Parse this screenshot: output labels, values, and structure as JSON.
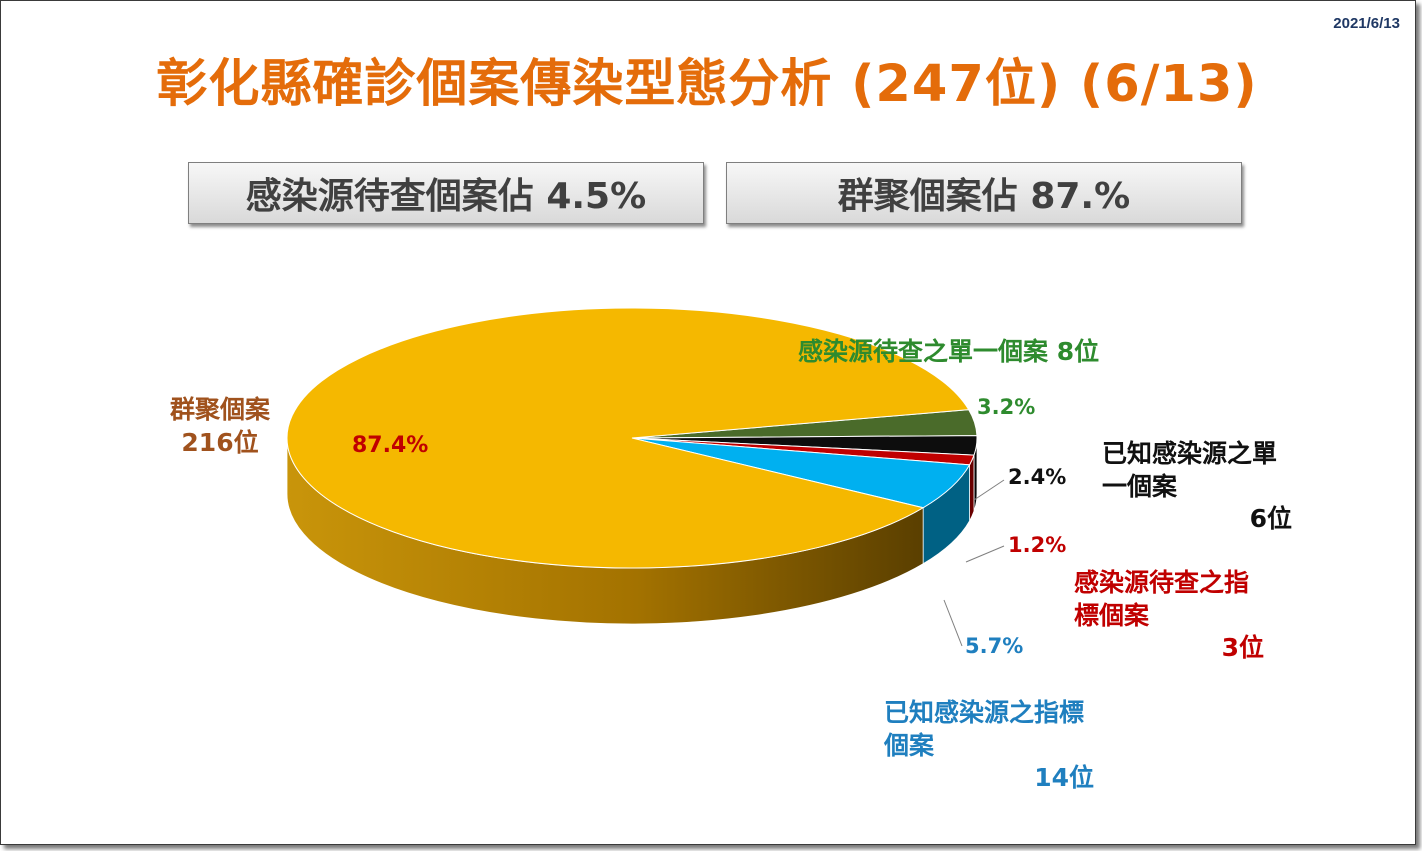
{
  "date": "2021/6/13",
  "title": "彰化縣確診個案傳染型態分析 (247位) (6/13)",
  "stats": {
    "unknown_source": "感染源待查個案佔 4.5%",
    "cluster": "群聚個案佔 87.%"
  },
  "colors": {
    "title": "#e46c0a",
    "cluster": "#f5b800",
    "unknown_single": "#4a6b2a",
    "known_single": "#0d0d0d",
    "unknown_index": "#c00000",
    "known_index": "#00b0f0"
  },
  "chart_data": {
    "type": "pie",
    "style": "3d",
    "total": 247,
    "slices": [
      {
        "label": "群聚個案",
        "count_label": "216位",
        "count": 216,
        "percent": 87.4,
        "percent_label": "87.4%",
        "color": "#f5b800",
        "label_color": "#a0521d",
        "pct_color": "#c00000"
      },
      {
        "label": "感染源待查之單一個案",
        "count_label": "8位",
        "count": 8,
        "percent": 3.2,
        "percent_label": "3.2%",
        "color": "#4a6b2a",
        "label_color": "#2e8b2e",
        "pct_color": "#2e8b2e"
      },
      {
        "label": "已知感染源之單一個案",
        "count_label": "6位",
        "count": 6,
        "percent": 2.4,
        "percent_label": "2.4%",
        "color": "#0d0d0d",
        "label_color": "#111111",
        "pct_color": "#111111"
      },
      {
        "label": "感染源待查之指標個案",
        "count_label": "3位",
        "count": 3,
        "percent": 1.2,
        "percent_label": "1.2%",
        "color": "#c00000",
        "label_color": "#c00000",
        "pct_color": "#c00000"
      },
      {
        "label": "已知感染源之指標個案",
        "count_label": "14位",
        "count": 14,
        "percent": 5.7,
        "percent_label": "5.7%",
        "color": "#00b0f0",
        "label_color": "#1f7fbf",
        "pct_color": "#1f7fbf"
      }
    ]
  }
}
